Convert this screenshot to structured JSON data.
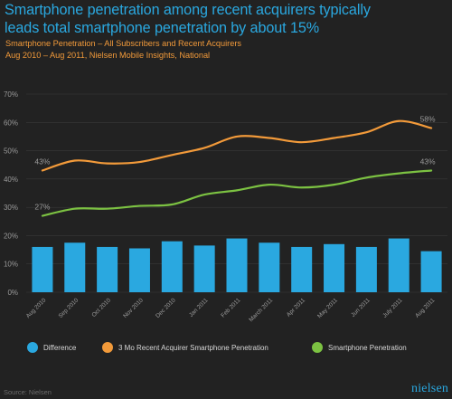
{
  "title": "Smartphone penetration among recent acquirers typically leads total smartphone penetration by about 15%",
  "subtitle_line1": "Smartphone Penetration – All Subscribers and Recent Acquirers",
  "subtitle_line2": "Aug 2010 – Aug 2011, Nielsen Mobile Insights, National",
  "source": "Source: Nielsen",
  "logo_text": "nielsen",
  "colors": {
    "background": "#222222",
    "title": "#2aa8e0",
    "subtitle": "#f29a3a",
    "difference": "#2aa8e0",
    "acquirer": "#f29a3a",
    "smartphone": "#7cc242",
    "axis_text": "#9a9a9a",
    "gridline": "#3a3a3a"
  },
  "chart_data": {
    "type": "bar",
    "categories": [
      "Aug 2010",
      "Sep 2010",
      "Oct 2010",
      "Nov 2010",
      "Dec 2010",
      "Jan 2011",
      "Feb 2011",
      "March 2011",
      "Apr 2011",
      "May 2011",
      "Jun 2011",
      "July 2011",
      "Aug 2011"
    ],
    "ylim": [
      0,
      70
    ],
    "ytick_labels": [
      "0%",
      "10%",
      "20%",
      "30%",
      "40%",
      "50%",
      "60%",
      "70%"
    ],
    "yticks": [
      0,
      10,
      20,
      30,
      40,
      50,
      60,
      70
    ],
    "series": [
      {
        "name": "Difference",
        "type": "bar",
        "color": "#2aa8e0",
        "values": [
          16,
          17.5,
          16,
          15.5,
          18,
          16.5,
          19,
          17.5,
          16,
          17,
          16,
          19,
          14.5
        ]
      },
      {
        "name": "3 Mo Recent Acquirer Smartphone Penetration",
        "type": "line",
        "color": "#f29a3a",
        "values": [
          43,
          46.5,
          45.5,
          46,
          48.5,
          51,
          55,
          54.5,
          53,
          54.5,
          56.5,
          60.5,
          58
        ]
      },
      {
        "name": "Smartphone Penetration",
        "type": "line",
        "color": "#7cc242",
        "values": [
          27,
          29.5,
          29.5,
          30.5,
          31,
          34.5,
          36,
          38,
          37,
          38,
          40.5,
          42,
          43
        ]
      }
    ],
    "annotations": [
      {
        "label": "43%",
        "series": 1,
        "index": 0
      },
      {
        "label": "58%",
        "series": 1,
        "index": 12
      },
      {
        "label": "27%",
        "series": 2,
        "index": 0
      },
      {
        "label": "43%",
        "series": 2,
        "index": 12
      }
    ],
    "legend_position": "bottom"
  }
}
